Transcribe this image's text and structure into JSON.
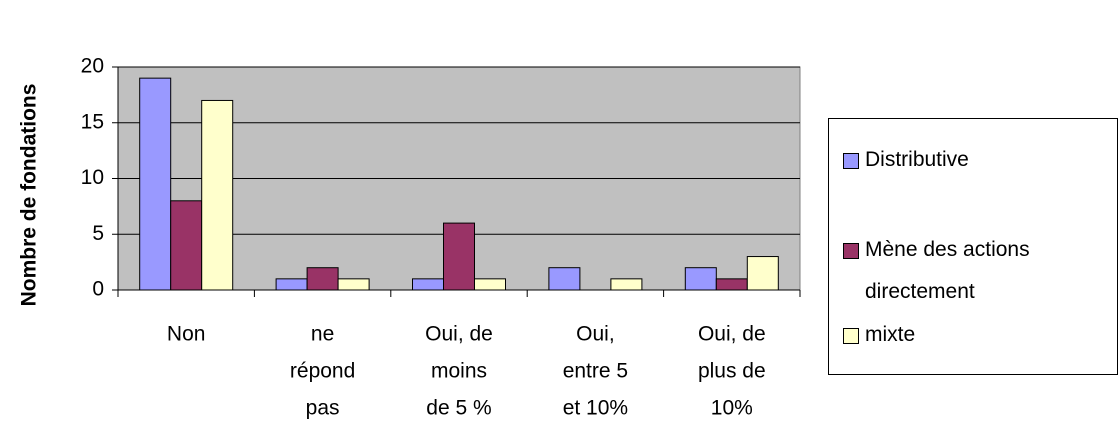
{
  "chart_data": {
    "type": "bar",
    "y_label": "Nombre de fondations",
    "categories": [
      [
        "Non"
      ],
      [
        "ne",
        "répond",
        "pas"
      ],
      [
        "Oui, de",
        "moins",
        "de 5 %"
      ],
      [
        "Oui,",
        "entre  5",
        "et 10%"
      ],
      [
        "Oui, de",
        "plus de",
        "10%"
      ]
    ],
    "series": [
      {
        "name": "Distributive",
        "color": "#9999ff",
        "values": [
          19,
          1,
          1,
          2,
          2
        ]
      },
      {
        "name": "Mène des actions directement",
        "color": "#993366",
        "values": [
          8,
          2,
          6,
          0,
          1
        ]
      },
      {
        "name": "mixte",
        "color": "#ffffcc",
        "values": [
          17,
          1,
          1,
          1,
          3
        ]
      }
    ],
    "ylim": [
      0,
      20
    ],
    "yticks": [
      0,
      5,
      10,
      15,
      20
    ],
    "grid": true,
    "plot_background": "#c0c0c0",
    "legend": "right"
  }
}
